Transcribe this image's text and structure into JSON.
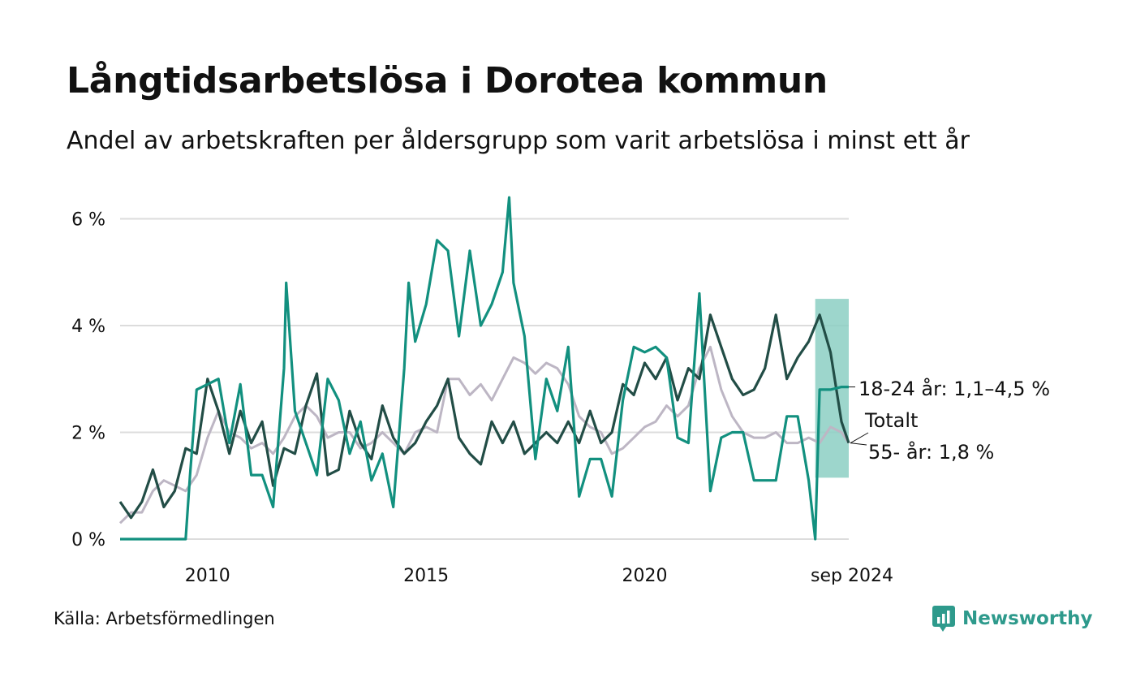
{
  "title": "Långtidsarbetslösa i Dorotea kommun",
  "subtitle": "Andel av arbetskraften per åldersgrupp som varit arbetslösa i minst ett år",
  "source": "Källa: Arbetsförmedlingen",
  "brand": {
    "name": "Newsworthy",
    "icon": "newsworthy-logo-icon",
    "color": "#2e9a8c"
  },
  "chart_data": {
    "type": "line",
    "ylim": [
      0,
      6.6
    ],
    "yticks": [
      0,
      2,
      4,
      6
    ],
    "ytick_labels": [
      "0 %",
      "2 %",
      "4 %",
      "6 %"
    ],
    "x_start": 2008.0,
    "x_end": 2024.667,
    "xticks": [
      2010,
      2015,
      2020,
      2024.667
    ],
    "xtick_labels": [
      "2010",
      "2015",
      "2020",
      "sep 2024"
    ],
    "grid": true,
    "series": [
      {
        "name": "55- år",
        "color": "#bdb6c4",
        "label": "55- år: 1,8 %",
        "x": [
          2008.0,
          2008.25,
          2008.5,
          2008.75,
          2009.0,
          2009.25,
          2009.5,
          2009.75,
          2010.0,
          2010.25,
          2010.5,
          2010.75,
          2011.0,
          2011.25,
          2011.5,
          2011.75,
          2012.0,
          2012.25,
          2012.5,
          2012.75,
          2013.0,
          2013.25,
          2013.5,
          2013.75,
          2014.0,
          2014.25,
          2014.5,
          2014.75,
          2015.0,
          2015.25,
          2015.5,
          2015.75,
          2016.0,
          2016.25,
          2016.5,
          2016.75,
          2017.0,
          2017.25,
          2017.5,
          2017.75,
          2018.0,
          2018.25,
          2018.5,
          2018.75,
          2019.0,
          2019.25,
          2019.5,
          2019.75,
          2020.0,
          2020.25,
          2020.5,
          2020.75,
          2021.0,
          2021.25,
          2021.5,
          2021.75,
          2022.0,
          2022.25,
          2022.5,
          2022.75,
          2023.0,
          2023.25,
          2023.5,
          2023.75,
          2024.0,
          2024.25,
          2024.5,
          2024.667
        ],
        "values": [
          0.3,
          0.5,
          0.5,
          0.9,
          1.1,
          1.0,
          0.9,
          1.2,
          1.9,
          2.4,
          2.0,
          1.9,
          1.7,
          1.8,
          1.6,
          1.9,
          2.3,
          2.5,
          2.3,
          1.9,
          2.0,
          2.0,
          1.7,
          1.8,
          2.0,
          1.8,
          1.6,
          2.0,
          2.1,
          2.0,
          3.0,
          3.0,
          2.7,
          2.9,
          2.6,
          3.0,
          3.4,
          3.3,
          3.1,
          3.3,
          3.2,
          2.9,
          2.3,
          2.1,
          2.0,
          1.6,
          1.7,
          1.9,
          2.1,
          2.2,
          2.5,
          2.3,
          2.5,
          3.2,
          3.6,
          2.8,
          2.3,
          2.0,
          1.9,
          1.9,
          2.0,
          1.8,
          1.8,
          1.9,
          1.8,
          2.1,
          2.0,
          1.8
        ]
      },
      {
        "name": "Totalt",
        "color": "#224d46",
        "label": "Totalt",
        "x": [
          2008.0,
          2008.25,
          2008.5,
          2008.75,
          2009.0,
          2009.25,
          2009.5,
          2009.75,
          2010.0,
          2010.25,
          2010.5,
          2010.75,
          2011.0,
          2011.25,
          2011.5,
          2011.75,
          2012.0,
          2012.25,
          2012.5,
          2012.75,
          2013.0,
          2013.25,
          2013.5,
          2013.75,
          2014.0,
          2014.25,
          2014.5,
          2014.75,
          2015.0,
          2015.25,
          2015.5,
          2015.75,
          2016.0,
          2016.25,
          2016.5,
          2016.75,
          2017.0,
          2017.25,
          2017.5,
          2017.75,
          2018.0,
          2018.25,
          2018.5,
          2018.75,
          2019.0,
          2019.25,
          2019.5,
          2019.75,
          2020.0,
          2020.25,
          2020.5,
          2020.75,
          2021.0,
          2021.25,
          2021.5,
          2021.75,
          2022.0,
          2022.25,
          2022.5,
          2022.75,
          2023.0,
          2023.25,
          2023.5,
          2023.75,
          2024.0,
          2024.25,
          2024.5,
          2024.667
        ],
        "values": [
          0.7,
          0.4,
          0.7,
          1.3,
          0.6,
          0.9,
          1.7,
          1.6,
          3.0,
          2.4,
          1.6,
          2.4,
          1.8,
          2.2,
          1.0,
          1.7,
          1.6,
          2.5,
          3.1,
          1.2,
          1.3,
          2.4,
          1.8,
          1.5,
          2.5,
          1.9,
          1.6,
          1.8,
          2.2,
          2.5,
          3.0,
          1.9,
          1.6,
          1.4,
          2.2,
          1.8,
          2.2,
          1.6,
          1.8,
          2.0,
          1.8,
          2.2,
          1.8,
          2.4,
          1.8,
          2.0,
          2.9,
          2.7,
          3.3,
          3.0,
          3.4,
          2.6,
          3.2,
          3.0,
          4.2,
          3.6,
          3.0,
          2.7,
          2.8,
          3.2,
          4.2,
          3.0,
          3.4,
          3.7,
          4.2,
          3.5,
          2.2,
          1.8
        ]
      },
      {
        "name": "18-24 år",
        "color": "#12907f",
        "label": "18-24 år: 1,1–4,5 %",
        "x": [
          2008.0,
          2008.5,
          2009.0,
          2009.5,
          2009.6,
          2009.75,
          2010.0,
          2010.25,
          2010.5,
          2010.75,
          2011.0,
          2011.25,
          2011.5,
          2011.75,
          2011.8,
          2012.0,
          2012.25,
          2012.5,
          2012.75,
          2013.0,
          2013.25,
          2013.5,
          2013.75,
          2014.0,
          2014.25,
          2014.5,
          2014.6,
          2014.75,
          2015.0,
          2015.25,
          2015.5,
          2015.75,
          2016.0,
          2016.25,
          2016.5,
          2016.75,
          2016.9,
          2017.0,
          2017.25,
          2017.5,
          2017.75,
          2018.0,
          2018.25,
          2018.5,
          2018.75,
          2019.0,
          2019.25,
          2019.5,
          2019.75,
          2020.0,
          2020.25,
          2020.5,
          2020.75,
          2021.0,
          2021.25,
          2021.5,
          2021.75,
          2022.0,
          2022.25,
          2022.5,
          2022.75,
          2023.0,
          2023.25,
          2023.5,
          2023.75,
          2023.9,
          2024.0,
          2024.25,
          2024.5,
          2024.667
        ],
        "values": [
          0,
          0,
          0,
          0,
          1.2,
          2.8,
          2.9,
          3.0,
          1.8,
          2.9,
          1.2,
          1.2,
          0.6,
          3.2,
          4.8,
          2.4,
          1.8,
          1.2,
          3.0,
          2.6,
          1.6,
          2.2,
          1.1,
          1.6,
          0.6,
          3.2,
          4.8,
          3.7,
          4.4,
          5.6,
          5.4,
          3.8,
          5.4,
          4.0,
          4.4,
          5.0,
          6.4,
          4.8,
          3.8,
          1.5,
          3.0,
          2.4,
          3.6,
          0.8,
          1.5,
          1.5,
          0.8,
          2.6,
          3.6,
          3.5,
          3.6,
          3.4,
          1.9,
          1.8,
          4.6,
          0.9,
          1.9,
          2.0,
          2.0,
          1.1,
          1.1,
          1.1,
          2.3,
          2.3,
          1.1,
          0,
          2.8,
          2.8,
          2.85,
          2.85
        ]
      }
    ],
    "band": {
      "series": "18-24 år",
      "color": "#8ccfc3",
      "x": [
        2023.9,
        2024.667
      ],
      "low": 1.15,
      "high": 4.5
    }
  }
}
